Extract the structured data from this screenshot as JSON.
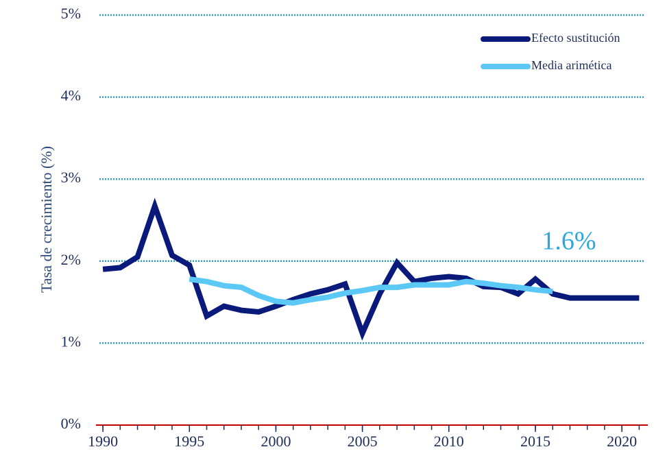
{
  "chart_data": {
    "type": "line",
    "y_label": "Tasa de crecimiento (%)",
    "annotation": "1.6%",
    "x": [
      1990,
      1991,
      1992,
      1993,
      1994,
      1995,
      1996,
      1997,
      1998,
      1999,
      2000,
      2001,
      2002,
      2003,
      2004,
      2005,
      2006,
      2007,
      2008,
      2009,
      2010,
      2011,
      2012,
      2013,
      2014,
      2015,
      2016,
      2017,
      2018,
      2019,
      2020,
      2021
    ],
    "series": [
      {
        "name": "Efecto sustitución",
        "color": "#0a1a7a",
        "values": [
          1.9,
          1.92,
          2.05,
          2.67,
          2.07,
          1.95,
          1.33,
          1.45,
          1.4,
          1.38,
          1.45,
          1.53,
          1.6,
          1.65,
          1.72,
          1.12,
          1.6,
          1.98,
          1.75,
          1.79,
          1.81,
          1.79,
          1.69,
          1.68,
          1.6,
          1.78,
          1.6,
          1.55,
          1.55,
          1.55,
          1.55,
          1.55
        ]
      },
      {
        "name": "Media arimética",
        "color": "#5bc8f5",
        "values": [
          null,
          null,
          null,
          null,
          null,
          1.78,
          1.75,
          1.7,
          1.68,
          1.58,
          1.51,
          1.49,
          1.53,
          1.56,
          1.61,
          1.64,
          1.68,
          1.68,
          1.71,
          1.71,
          1.71,
          1.75,
          1.73,
          1.7,
          1.68,
          1.65,
          1.63,
          null,
          null,
          null,
          null,
          null
        ]
      }
    ],
    "xlim": [
      1989.6,
      2021.5
    ],
    "xticks": [
      1990,
      1995,
      2000,
      2005,
      2010,
      2015,
      2020
    ],
    "ylim": [
      0,
      5
    ],
    "yticks": [
      {
        "value": 0,
        "label": "0%"
      },
      {
        "value": 1,
        "label": "1%"
      },
      {
        "value": 2,
        "label": "2%"
      },
      {
        "value": 3,
        "label": "3%"
      },
      {
        "value": 4,
        "label": "4%"
      },
      {
        "value": 5,
        "label": "5%"
      }
    ],
    "grid": true,
    "legend": "upper right"
  }
}
